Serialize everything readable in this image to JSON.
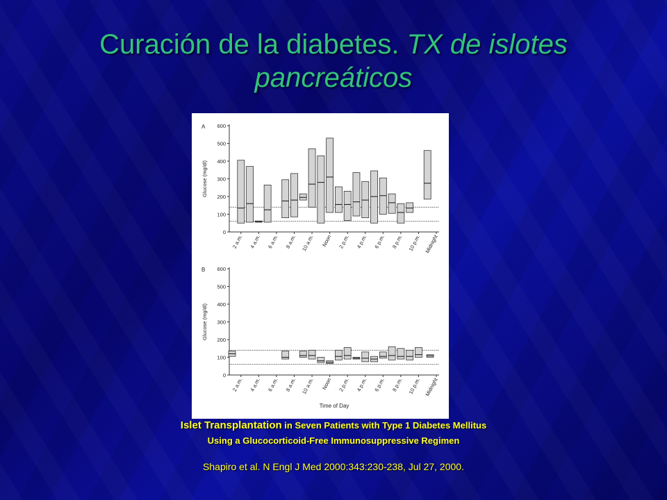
{
  "slide": {
    "title_plain": "Curación de la diabetes.",
    "title_italic_1": "TX de islotes",
    "title_italic_2": "pancreáticos"
  },
  "caption": {
    "line1_lead": "Islet Transplantation",
    "line1_rest": "in Seven Patients with Type 1 Diabetes Mellitus",
    "line2": "Using a Glucocorticoid-Free Immunosuppressive Regimen",
    "citation": "Shapiro et al. N Engl J Med 2000:343:230-238, Jul 27, 2000."
  },
  "chart_data": [
    {
      "type": "box",
      "panel": "A",
      "ylabel": "Glucose (mg/dl)",
      "xlabel": "",
      "ylim": [
        0,
        600
      ],
      "yticks": [
        0,
        100,
        200,
        300,
        400,
        500,
        600
      ],
      "xlim": [
        1,
        24
      ],
      "xticks": [
        {
          "x": 2,
          "label": "2 a.m."
        },
        {
          "x": 4,
          "label": "4 a.m."
        },
        {
          "x": 6,
          "label": "6 a.m."
        },
        {
          "x": 8,
          "label": "8 a.m."
        },
        {
          "x": 10,
          "label": "10 a.m."
        },
        {
          "x": 12,
          "label": "Noon"
        },
        {
          "x": 14,
          "label": "2 p.m."
        },
        {
          "x": 16,
          "label": "4 p.m."
        },
        {
          "x": 18,
          "label": "6 p.m."
        },
        {
          "x": 20,
          "label": "8 p.m."
        },
        {
          "x": 22,
          "label": "10 p.m."
        },
        {
          "x": 24,
          "label": "Midnight"
        }
      ],
      "reference_lines": [
        60,
        140
      ],
      "boxes": [
        {
          "x": 2,
          "low": 50,
          "high": 405,
          "median": 135
        },
        {
          "x": 3,
          "low": 55,
          "high": 370,
          "median": 160
        },
        {
          "x": 4,
          "low": 55,
          "high": 62,
          "median": 58
        },
        {
          "x": 5,
          "low": 55,
          "high": 265,
          "median": 125
        },
        {
          "x": 7,
          "low": 80,
          "high": 295,
          "median": 175
        },
        {
          "x": 8,
          "low": 85,
          "high": 330,
          "median": 180
        },
        {
          "x": 9,
          "low": 180,
          "high": 215,
          "median": 195
        },
        {
          "x": 10,
          "low": 140,
          "high": 470,
          "median": 270
        },
        {
          "x": 11,
          "low": 50,
          "high": 430,
          "median": 280
        },
        {
          "x": 12,
          "low": 110,
          "high": 530,
          "median": 310
        },
        {
          "x": 13,
          "low": 110,
          "high": 255,
          "median": 155
        },
        {
          "x": 14,
          "low": 65,
          "high": 230,
          "median": 155
        },
        {
          "x": 15,
          "low": 90,
          "high": 335,
          "median": 170
        },
        {
          "x": 16,
          "low": 80,
          "high": 285,
          "median": 180
        },
        {
          "x": 17,
          "low": 50,
          "high": 345,
          "median": 200
        },
        {
          "x": 18,
          "low": 100,
          "high": 305,
          "median": 205
        },
        {
          "x": 19,
          "low": 105,
          "high": 215,
          "median": 165
        },
        {
          "x": 20,
          "low": 50,
          "high": 160,
          "median": 110
        },
        {
          "x": 21,
          "low": 110,
          "high": 165,
          "median": 135
        },
        {
          "x": 23,
          "low": 185,
          "high": 460,
          "median": 275
        }
      ]
    },
    {
      "type": "box",
      "panel": "B",
      "ylabel": "Glucose (mg/dl)",
      "xlabel": "Time of Day",
      "ylim": [
        0,
        600
      ],
      "yticks": [
        0,
        100,
        200,
        300,
        400,
        500,
        600
      ],
      "xlim": [
        1,
        24
      ],
      "xticks": [
        {
          "x": 2,
          "label": "2 a.m."
        },
        {
          "x": 4,
          "label": "4 a.m."
        },
        {
          "x": 6,
          "label": "6 a.m."
        },
        {
          "x": 8,
          "label": "8 a.m."
        },
        {
          "x": 10,
          "label": "10 a.m."
        },
        {
          "x": 12,
          "label": "Noon"
        },
        {
          "x": 14,
          "label": "2 p.m."
        },
        {
          "x": 16,
          "label": "4 p.m."
        },
        {
          "x": 18,
          "label": "6 p.m."
        },
        {
          "x": 20,
          "label": "8 p.m."
        },
        {
          "x": 22,
          "label": "10 p.m."
        },
        {
          "x": 24,
          "label": "Midnight"
        }
      ],
      "reference_lines": [
        60,
        140
      ],
      "boxes": [
        {
          "x": 1,
          "low": 105,
          "high": 135,
          "median": 120
        },
        {
          "x": 7,
          "low": 90,
          "high": 135,
          "median": 100
        },
        {
          "x": 9,
          "low": 100,
          "high": 135,
          "median": 110
        },
        {
          "x": 10,
          "low": 90,
          "high": 140,
          "median": 110
        },
        {
          "x": 11,
          "low": 70,
          "high": 100,
          "median": 80
        },
        {
          "x": 12,
          "low": 65,
          "high": 80,
          "median": 72
        },
        {
          "x": 13,
          "low": 85,
          "high": 140,
          "median": 105
        },
        {
          "x": 14,
          "low": 90,
          "high": 155,
          "median": 110
        },
        {
          "x": 15,
          "low": 90,
          "high": 100,
          "median": 95
        },
        {
          "x": 16,
          "low": 75,
          "high": 130,
          "median": 95
        },
        {
          "x": 17,
          "low": 75,
          "high": 105,
          "median": 90
        },
        {
          "x": 18,
          "low": 95,
          "high": 130,
          "median": 105
        },
        {
          "x": 19,
          "low": 85,
          "high": 160,
          "median": 110
        },
        {
          "x": 20,
          "low": 90,
          "high": 150,
          "median": 105
        },
        {
          "x": 21,
          "low": 85,
          "high": 140,
          "median": 105
        },
        {
          "x": 22,
          "low": 100,
          "high": 155,
          "median": 115
        },
        {
          "x": 23.3,
          "low": 100,
          "high": 115,
          "median": 108
        }
      ]
    }
  ]
}
